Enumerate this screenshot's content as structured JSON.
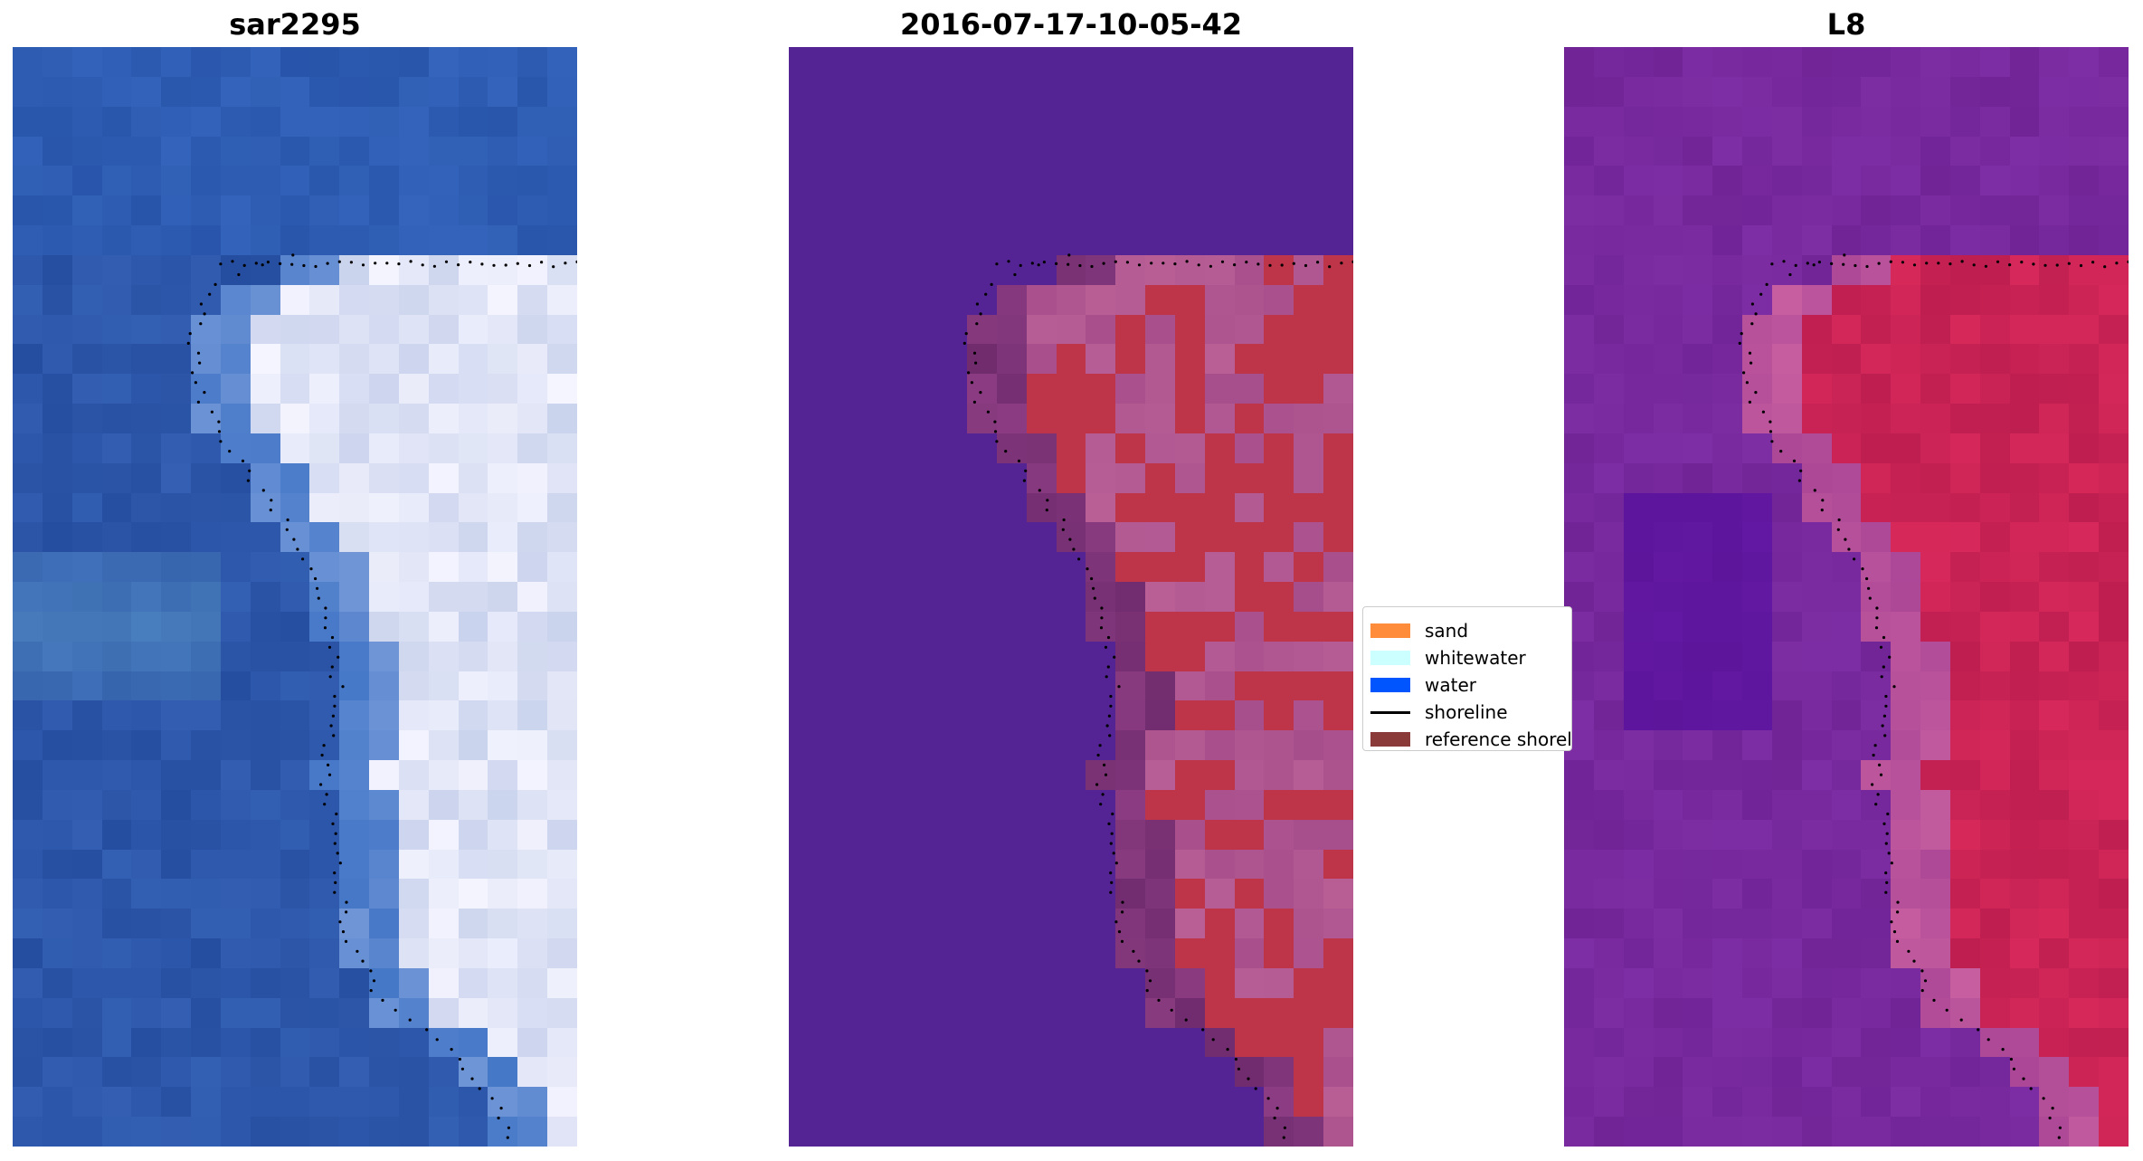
{
  "figure": {
    "panels": [
      {
        "title": "sar2295",
        "kind": "rgb"
      },
      {
        "title": "2016-07-17-10-05-42",
        "kind": "classified"
      },
      {
        "title": "L8",
        "kind": "index"
      }
    ],
    "legend": {
      "items": [
        {
          "label": "sand",
          "color": "#ff8c3a",
          "type": "patch"
        },
        {
          "label": "whitewater",
          "color": "#ccffff",
          "type": "patch"
        },
        {
          "label": "water",
          "color": "#0055ff",
          "type": "patch"
        },
        {
          "label": "shoreline",
          "color": "#000000",
          "type": "line"
        },
        {
          "label": "reference shoreline",
          "color": "#8b3a3a",
          "type": "patch"
        }
      ]
    }
  }
}
